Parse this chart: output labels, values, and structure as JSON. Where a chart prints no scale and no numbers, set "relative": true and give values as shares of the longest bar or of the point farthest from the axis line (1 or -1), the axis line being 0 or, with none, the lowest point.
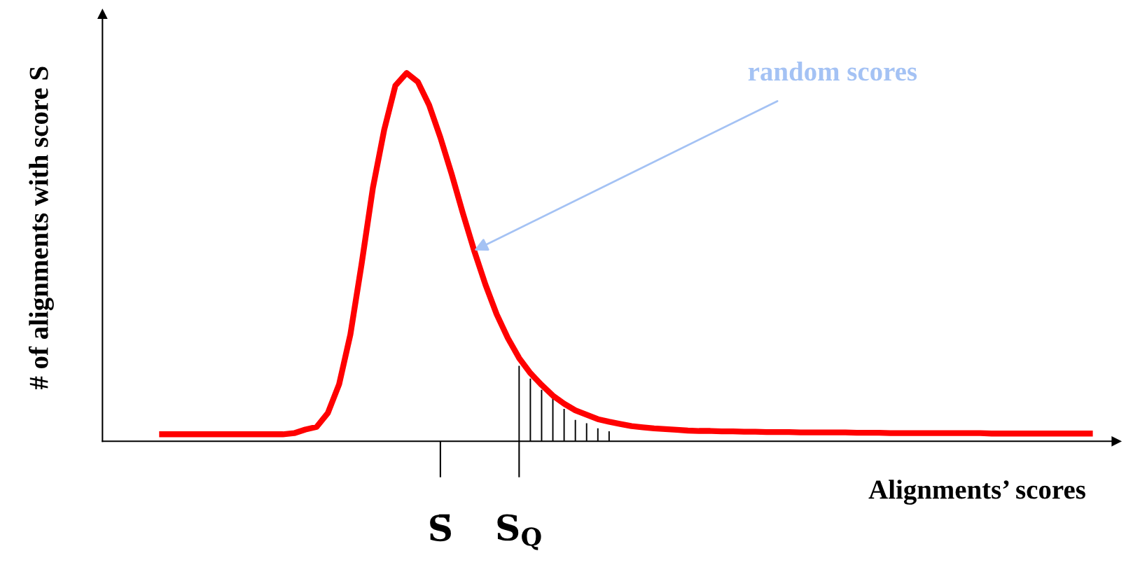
{
  "chart_data": {
    "type": "line",
    "relative": true,
    "xlabel": "Alignments’ scores",
    "ylabel": "# of alignments with score S",
    "categories": [
      null,
      null,
      null,
      null,
      null,
      null,
      null,
      null,
      null,
      null,
      null,
      null,
      null,
      null,
      null,
      null,
      null,
      null,
      null,
      null,
      null,
      null,
      null,
      null,
      null,
      "S̄",
      null,
      null,
      null,
      null,
      null,
      null,
      "S$_{Q}$",
      null,
      null,
      null,
      null,
      null,
      null,
      null,
      null,
      null,
      null,
      null,
      null,
      null,
      null,
      null,
      null,
      null,
      null,
      null,
      null,
      null,
      null,
      null,
      null,
      null,
      null,
      null,
      null,
      null,
      null,
      null,
      null,
      null,
      null,
      null,
      null,
      null,
      null,
      null,
      null,
      null,
      null,
      null,
      null,
      null,
      null,
      null,
      null,
      null,
      null,
      null
    ],
    "series": [
      {
        "color": "#ff0000",
        "values": [
          0.019,
          0.019,
          0.019,
          0.019,
          0.019,
          0.019,
          0.019,
          0.019,
          0.019,
          0.019,
          0.019,
          0.019,
          0.022,
          0.032,
          0.039,
          0.077,
          0.155,
          0.29,
          0.482,
          0.688,
          0.845,
          0.966,
          1,
          0.976,
          0.913,
          0.825,
          0.726,
          0.619,
          0.518,
          0.426,
          0.345,
          0.28,
          0.226,
          0.185,
          0.153,
          0.124,
          0.102,
          0.084,
          0.072,
          0.06,
          0.053,
          0.047,
          0.041,
          0.038,
          0.035,
          0.033,
          0.031,
          0.029,
          0.028,
          0.028,
          0.027,
          0.027,
          0.026,
          0.026,
          0.025,
          0.025,
          0.025,
          0.024,
          0.024,
          0.024,
          0.024,
          0.024,
          0.023,
          0.023,
          0.023,
          0.022,
          0.022,
          0.022,
          0.022,
          0.022,
          0.022,
          0.022,
          0.022,
          0.022,
          0.021,
          0.021,
          0.021,
          0.021,
          0.021,
          0.021,
          0.021,
          0.021,
          0.021,
          0.021
        ]
      },
      {
        "type": "bar",
        "color": "#000000",
        "values": [
          null,
          null,
          null,
          null,
          null,
          null,
          null,
          null,
          null,
          null,
          null,
          null,
          null,
          null,
          null,
          null,
          null,
          null,
          null,
          null,
          null,
          null,
          null,
          null,
          null,
          null,
          null,
          null,
          null,
          null,
          null,
          null,
          0.205,
          0.17,
          0.14,
          0.117,
          0.088,
          0.058,
          0.049,
          0.035,
          0.027,
          null,
          null,
          null,
          null,
          null,
          null,
          null,
          null,
          null,
          null,
          null,
          null,
          null,
          null,
          null,
          null,
          null,
          null,
          null,
          null,
          null,
          null,
          null,
          null,
          null,
          null,
          null,
          null,
          null,
          null,
          null,
          null,
          null,
          null,
          null,
          null,
          null,
          null,
          null,
          null,
          null,
          null,
          null
        ]
      }
    ],
    "annotations": [
      "random scores"
    ],
    "grid": false,
    "legend": false
  }
}
